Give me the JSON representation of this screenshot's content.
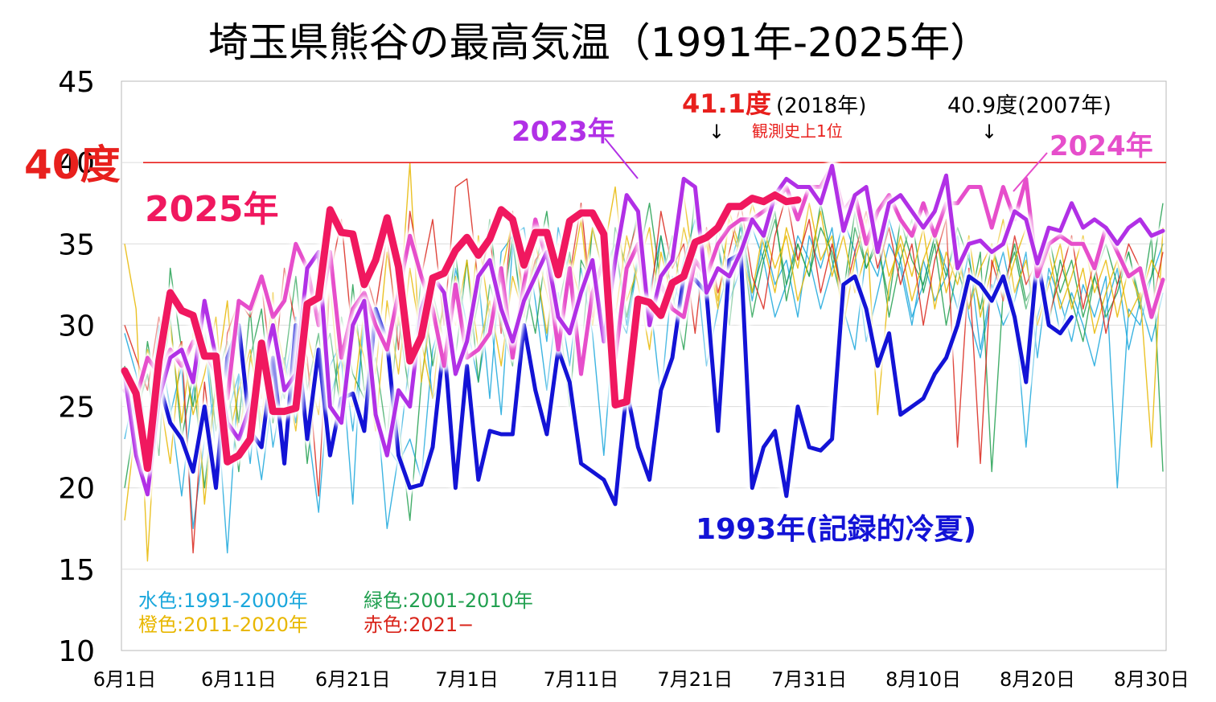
{
  "chart_data": {
    "type": "line",
    "title": "埼玉県熊谷の最高気温（1991年-2025年）",
    "ylim": [
      10,
      45
    ],
    "yticks": [
      10,
      15,
      20,
      25,
      30,
      35,
      40,
      45
    ],
    "xtick_labels": [
      "6月1日",
      "6月11日",
      "6月21日",
      "7月1日",
      "7月11日",
      "7月21日",
      "7月31日",
      "8月10日",
      "8月20日",
      "8月30日"
    ],
    "x_days": 92,
    "grid": true,
    "threshold": {
      "value": 40,
      "label": "40度",
      "color": "#e8201d"
    },
    "legend": {
      "row1": [
        {
          "label": "水色:1991-2000年",
          "color": "#1aa7dc"
        },
        {
          "label": "緑色:2001-2010年",
          "color": "#22a050"
        }
      ],
      "row2": [
        {
          "label": "橙色:2011-2020年",
          "color": "#e8b700"
        },
        {
          "label": "赤色:2021−",
          "color": "#d9241a"
        }
      ]
    },
    "annotations": {
      "y2025": {
        "label": "2025年",
        "color": "#f0185f"
      },
      "y2023": {
        "label": "2023年",
        "color": "#b130e6"
      },
      "y2024": {
        "label": "2024年",
        "color": "#e64ecb"
      },
      "y1993": {
        "label": "1993年(記録的冷夏)",
        "color": "#1313d6"
      },
      "rec2018": {
        "value_label": "41.1度",
        "year_label": "(2018年)",
        "rank_label": "観測史上1位",
        "arrow": "↓",
        "color": "#e8201d"
      },
      "rec2007": {
        "label": "40.9度(2007年)",
        "arrow": "↓",
        "color": "#000000"
      }
    },
    "series": [
      {
        "name": "2025年",
        "color": "#f0185f",
        "width": 9,
        "glow": true,
        "values": [
          27.2,
          25.8,
          21.2,
          27.8,
          32.0,
          30.9,
          30.6,
          28.1,
          28.1,
          21.6,
          22.0,
          23.0,
          28.9,
          24.7,
          24.7,
          24.9,
          31.3,
          31.7,
          37.1,
          35.7,
          35.6,
          32.5,
          34.0,
          36.6,
          33.6,
          27.8,
          29.3,
          32.9,
          33.2,
          34.6,
          35.4,
          34.3,
          35.3,
          37.1,
          36.5,
          33.7,
          35.7,
          35.7,
          33.1,
          36.4,
          36.9,
          36.9,
          35.6,
          25.1,
          25.3,
          31.6,
          31.4,
          30.6,
          32.6,
          33.0,
          35.1,
          35.4,
          36.0,
          37.3,
          37.3,
          37.8,
          37.6,
          38.0,
          37.6,
          37.7
        ]
      },
      {
        "name": "2023年",
        "color": "#b130e6",
        "width": 5,
        "glow": true,
        "values": [
          27.0,
          22.0,
          19.6,
          25.5,
          28.0,
          28.5,
          26.5,
          31.5,
          28.0,
          24.0,
          23.0,
          25.0,
          27.0,
          30.0,
          26.0,
          27.0,
          33.5,
          34.5,
          25.0,
          24.0,
          30.0,
          31.5,
          24.5,
          22.0,
          26.0,
          25.0,
          31.0,
          33.0,
          32.0,
          27.0,
          29.0,
          33.0,
          34.0,
          31.0,
          29.0,
          31.5,
          33.0,
          34.5,
          30.5,
          29.5,
          32.0,
          34.0,
          29.0,
          34.0,
          38.0,
          37.0,
          30.0,
          33.0,
          34.0,
          39.0,
          38.5,
          32.0,
          33.5,
          33.0,
          34.5,
          36.5,
          35.5,
          38.0,
          39.0,
          38.5,
          38.5,
          37.5,
          39.8,
          35.8,
          38.0,
          38.5,
          34.5,
          37.5,
          38.0,
          37.0,
          36.0,
          37.0,
          39.2,
          33.5,
          35.0,
          35.2,
          34.5,
          35.0,
          37.0,
          36.5,
          33.8,
          36.0,
          35.8,
          37.5,
          36.0,
          36.5,
          36.0,
          35.0,
          36.0,
          36.5,
          35.5,
          35.8
        ]
      },
      {
        "name": "2024年",
        "color": "#e64ecb",
        "width": 5,
        "glow": true,
        "values": [
          26.0,
          25.5,
          28.0,
          27.0,
          28.5,
          27.5,
          29.0,
          28.5,
          27.0,
          25.5,
          31.5,
          31.0,
          33.0,
          30.5,
          31.5,
          35.0,
          33.5,
          30.0,
          34.5,
          28.0,
          31.0,
          32.0,
          30.0,
          28.5,
          32.0,
          35.5,
          33.0,
          31.0,
          27.5,
          32.5,
          28.0,
          28.5,
          29.5,
          33.5,
          28.0,
          32.5,
          36.5,
          34.0,
          28.5,
          33.5,
          27.0,
          32.0,
          34.0,
          28.0,
          33.5,
          35.0,
          30.0,
          32.5,
          31.0,
          30.5,
          34.0,
          33.0,
          35.0,
          36.0,
          36.5,
          36.5,
          37.0,
          37.5,
          38.5,
          36.5,
          38.5,
          38.5,
          39.8,
          37.0,
          38.0,
          35.0,
          37.0,
          38.0,
          36.5,
          35.5,
          37.5,
          35.5,
          37.5,
          37.5,
          38.5,
          38.5,
          36.0,
          38.5,
          36.5,
          39.0,
          33.0,
          35.0,
          35.5,
          35.0,
          35.0,
          33.5,
          36.0,
          34.5,
          33.0,
          33.5,
          30.5,
          32.8
        ]
      },
      {
        "name": "1993年",
        "color": "#1313d6",
        "width": 5,
        "glow": true,
        "values": [
          26.0,
          24.5,
          22.0,
          26.5,
          24.0,
          23.0,
          21.0,
          25.0,
          20.0,
          28.0,
          30.0,
          23.5,
          22.5,
          28.0,
          21.5,
          30.0,
          23.0,
          28.5,
          22.0,
          25.5,
          25.8,
          23.5,
          31.0,
          29.0,
          22.0,
          20.0,
          20.2,
          22.5,
          29.0,
          20.0,
          27.5,
          20.5,
          23.5,
          23.3,
          23.3,
          30.0,
          26.0,
          23.3,
          28.5,
          26.5,
          21.5,
          21.0,
          20.5,
          19.0,
          26.0,
          22.5,
          20.5,
          26.0,
          28.0,
          33.0,
          32.8,
          32.0,
          23.5,
          34.0,
          34.4,
          20.0,
          22.5,
          23.5,
          19.5,
          25.0,
          22.5,
          22.3,
          23.0,
          32.5,
          33.0,
          31.0,
          27.5,
          29.5,
          24.5,
          25.0,
          25.5,
          27.0,
          28.0,
          30.0,
          33.0,
          32.5,
          31.5,
          33.0,
          30.5,
          26.5,
          34.2,
          30.0,
          29.5,
          30.5
        ]
      }
    ],
    "background_series": [
      {
        "color": "#1aa7dc",
        "values": [
          29.5,
          27.0,
          23.5,
          30.0,
          24.5,
          27.5,
          17.5,
          23.0,
          26.0,
          16.0,
          27.0,
          25.0,
          20.5,
          26.0,
          28.0,
          24.0,
          30.5,
          31.5,
          25.5,
          28.0,
          19.0,
          32.0,
          24.0,
          22.5,
          21.5,
          23.0,
          20.5,
          28.5,
          31.0,
          27.5,
          29.0,
          33.0,
          25.5,
          34.5,
          35.5,
          36.0,
          31.5,
          26.0,
          32.0,
          27.5,
          33.5,
          29.5,
          22.0,
          31.0,
          29.5,
          34.0,
          32.0,
          25.5,
          33.0,
          30.5,
          34.5,
          27.5,
          31.0,
          33.5,
          36.0,
          31.5,
          35.5,
          32.5,
          34.0,
          30.5,
          35.5,
          33.5,
          36.0,
          31.0,
          28.5,
          34.5,
          33.0,
          36.5,
          34.0,
          30.5,
          32.5,
          35.5,
          33.5,
          31.0,
          34.5,
          28.5,
          32.5,
          30.0,
          31.5,
          34.5,
          28.0,
          33.5,
          31.5,
          29.0,
          32.5,
          30.5,
          33.0,
          20.0,
          31.0,
          30.0,
          33.0,
          35.0
        ]
      },
      {
        "color": "#1aa7dc",
        "values": [
          23.0,
          26.5,
          21.0,
          28.5,
          25.0,
          19.5,
          26.0,
          29.5,
          22.0,
          24.5,
          27.0,
          21.5,
          29.0,
          22.5,
          26.5,
          30.5,
          24.0,
          18.5,
          27.5,
          29.0,
          23.5,
          30.0,
          26.0,
          17.5,
          22.0,
          28.0,
          31.5,
          25.5,
          27.0,
          33.5,
          30.0,
          26.5,
          31.0,
          24.5,
          35.0,
          30.5,
          34.0,
          29.0,
          36.0,
          33.0,
          28.5,
          31.5,
          33.5,
          35.0,
          30.0,
          34.5,
          32.0,
          35.5,
          31.0,
          34.0,
          36.5,
          33.0,
          35.0,
          31.5,
          33.5,
          36.0,
          34.0,
          30.5,
          32.5,
          35.5,
          34.0,
          31.0,
          33.5,
          36.5,
          34.5,
          29.0,
          32.0,
          35.0,
          33.5,
          30.0,
          34.0,
          31.5,
          33.0,
          35.5,
          30.5,
          28.0,
          32.0,
          34.5,
          31.0,
          22.5,
          30.5,
          33.0,
          29.5,
          32.0,
          30.0,
          27.5,
          31.0,
          33.5,
          28.5,
          31.5,
          29.0,
          32.0
        ]
      },
      {
        "color": "#22a050",
        "values": [
          20.0,
          24.5,
          27.0,
          22.0,
          33.5,
          28.5,
          25.0,
          30.0,
          23.5,
          26.5,
          21.0,
          28.0,
          31.0,
          24.0,
          27.5,
          33.0,
          26.0,
          29.5,
          23.0,
          30.5,
          27.0,
          25.5,
          31.0,
          28.5,
          24.0,
          18.0,
          26.5,
          32.0,
          29.0,
          34.5,
          28.0,
          31.5,
          36.5,
          30.0,
          27.5,
          33.0,
          29.5,
          35.0,
          31.0,
          25.0,
          34.0,
          32.5,
          29.0,
          36.0,
          33.5,
          37.0,
          30.0,
          35.5,
          32.0,
          28.5,
          34.5,
          31.0,
          36.0,
          33.0,
          35.5,
          30.5,
          34.0,
          36.5,
          32.5,
          35.0,
          33.0,
          37.5,
          34.0,
          31.0,
          36.0,
          33.5,
          35.5,
          30.5,
          34.0,
          36.5,
          32.0,
          35.0,
          30.0,
          33.5,
          31.0,
          34.5,
          21.0,
          32.0,
          35.0,
          31.5,
          33.0,
          30.0,
          34.0,
          31.5,
          29.0,
          33.0,
          30.5,
          32.0,
          34.5,
          31.0,
          35.5,
          21.0
        ]
      },
      {
        "color": "#22a050",
        "values": [
          27.5,
          22.5,
          29.0,
          25.0,
          30.5,
          23.0,
          27.0,
          20.0,
          26.5,
          29.0,
          24.0,
          31.0,
          22.5,
          28.5,
          25.5,
          30.0,
          21.5,
          27.5,
          29.5,
          24.5,
          32.5,
          26.0,
          28.0,
          23.0,
          30.5,
          25.5,
          33.0,
          27.5,
          31.5,
          28.0,
          34.0,
          26.5,
          32.5,
          30.0,
          35.5,
          29.5,
          33.5,
          37.0,
          31.0,
          34.5,
          28.0,
          36.0,
          33.0,
          35.0,
          30.5,
          34.0,
          37.5,
          32.5,
          35.5,
          31.0,
          38.0,
          33.5,
          35.0,
          30.0,
          36.5,
          32.0,
          34.5,
          37.0,
          31.5,
          35.0,
          33.0,
          36.0,
          34.5,
          32.0,
          37.0,
          33.5,
          35.0,
          31.5,
          36.5,
          34.0,
          32.5,
          35.5,
          33.0,
          36.0,
          34.0,
          31.0,
          35.0,
          32.5,
          34.5,
          31.0,
          33.5,
          35.5,
          32.0,
          34.0,
          30.5,
          33.0,
          35.0,
          32.5,
          34.5,
          31.5,
          33.0,
          37.5
        ]
      },
      {
        "color": "#e8b700",
        "values": [
          35.0,
          31.0,
          15.5,
          27.5,
          30.0,
          24.0,
          29.5,
          19.0,
          26.5,
          31.5,
          23.0,
          28.0,
          25.5,
          32.0,
          22.0,
          29.0,
          27.5,
          24.5,
          33.5,
          28.0,
          25.0,
          31.0,
          27.0,
          34.5,
          30.0,
          40.0,
          26.5,
          31.5,
          29.0,
          33.0,
          28.5,
          35.5,
          30.5,
          33.0,
          36.5,
          31.0,
          34.0,
          29.5,
          35.0,
          32.5,
          36.5,
          30.0,
          34.5,
          38.5,
          31.5,
          33.5,
          36.0,
          30.5,
          34.5,
          38.0,
          33.0,
          35.5,
          31.5,
          36.5,
          34.0,
          37.5,
          35.0,
          32.0,
          36.0,
          33.5,
          37.5,
          34.0,
          35.5,
          30.0,
          34.0,
          36.5,
          24.5,
          32.5,
          35.5,
          33.0,
          36.0,
          31.0,
          34.5,
          32.5,
          35.5,
          30.5,
          33.5,
          36.5,
          32.0,
          34.0,
          30.0,
          32.5,
          35.0,
          31.0,
          33.5,
          29.5,
          32.0,
          34.0,
          30.5,
          32.0,
          22.5,
          36.0
        ]
      },
      {
        "color": "#e8b700",
        "values": [
          18.0,
          24.0,
          28.5,
          26.0,
          21.5,
          29.0,
          24.5,
          27.0,
          30.5,
          22.5,
          26.0,
          28.5,
          24.0,
          31.0,
          27.5,
          23.5,
          29.5,
          26.5,
          32.5,
          25.0,
          30.5,
          28.0,
          23.5,
          31.5,
          27.0,
          33.5,
          29.0,
          25.5,
          32.0,
          30.0,
          34.0,
          28.5,
          31.5,
          27.5,
          33.0,
          30.5,
          35.0,
          32.0,
          29.0,
          34.0,
          31.5,
          36.0,
          33.0,
          30.5,
          35.5,
          32.5,
          28.5,
          34.5,
          31.5,
          36.0,
          33.0,
          35.0,
          31.0,
          37.0,
          34.5,
          32.0,
          36.0,
          33.5,
          35.5,
          31.5,
          34.0,
          37.0,
          33.0,
          35.5,
          32.0,
          34.5,
          36.5,
          33.0,
          35.0,
          31.5,
          34.0,
          36.0,
          32.0,
          34.5,
          31.0,
          33.5,
          35.0,
          31.5,
          34.0,
          36.0,
          32.5,
          34.5,
          31.0,
          33.0,
          35.5,
          32.0,
          34.0,
          30.5,
          33.5,
          31.5,
          34.0,
          32.5
        ]
      },
      {
        "color": "#d9241a",
        "values": [
          30.0,
          28.0,
          26.0,
          30.5,
          27.5,
          29.0,
          16.0,
          26.5,
          20.5,
          29.5,
          31.5,
          30.5,
          32.5,
          26.5,
          33.5,
          30.0,
          28.0,
          19.5,
          33.0,
          36.5,
          29.0,
          33.5,
          31.0,
          35.5,
          28.5,
          37.0,
          33.0,
          36.5,
          30.0,
          38.5,
          39.0,
          32.5,
          35.5,
          29.5,
          37.0,
          31.5,
          34.0,
          35.0,
          29.0,
          33.0,
          37.5,
          30.5,
          35.5,
          28.5,
          34.0,
          36.5,
          31.0,
          37.0,
          33.5,
          35.0,
          29.5,
          36.0,
          32.0,
          34.5,
          37.5,
          33.0,
          31.0,
          35.5,
          38.0,
          34.0,
          36.5,
          32.0,
          35.0,
          31.5,
          34.5,
          37.0,
          33.5,
          36.0,
          32.5,
          35.0,
          30.0,
          34.0,
          36.5,
          22.5,
          33.5,
          21.5,
          34.0,
          31.5,
          35.5,
          32.5,
          34.0,
          30.5,
          33.0,
          35.5,
          31.0,
          34.0,
          29.5,
          32.5,
          35.0,
          33.5,
          31.0,
          34.5
        ]
      }
    ]
  }
}
